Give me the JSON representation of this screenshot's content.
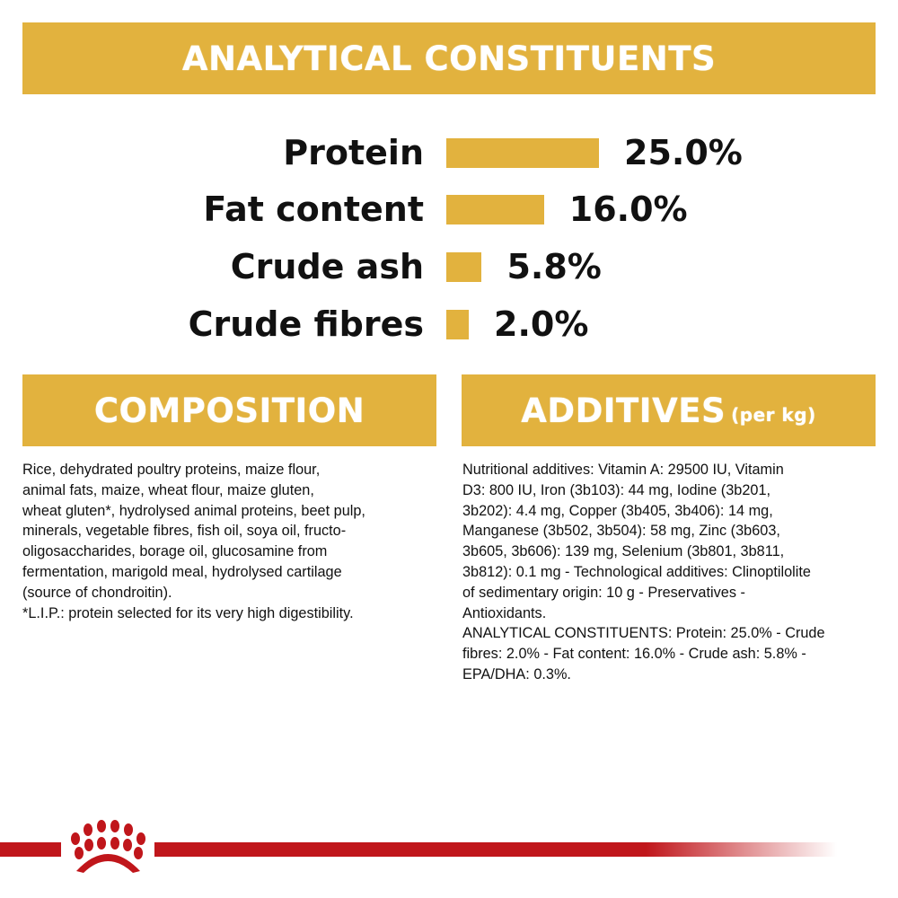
{
  "analytical": {
    "title": "ANALYTICAL CONSTITUENTS",
    "items": [
      {
        "label": "Protein",
        "value": "25.0%",
        "percent": 25.0
      },
      {
        "label": "Fat content",
        "value": "16.0%",
        "percent": 16.0
      },
      {
        "label": "Crude ash",
        "value": "5.8%",
        "percent": 5.8
      },
      {
        "label": "Crude fibres",
        "value": "2.0%",
        "percent": 2.0
      }
    ]
  },
  "composition": {
    "title": "COMPOSITION",
    "text": "Rice, dehydrated poultry proteins, maize flour,\nanimal fats, maize, wheat flour, maize gluten,\nwheat gluten*, hydrolysed animal proteins, beet pulp,\nminerals, vegetable fibres, fish oil, soya oil, fructo-\noligosaccharides, borage oil, glucosamine from\nfermentation, marigold meal, hydrolysed cartilage\n(source of chondroitin).\n*L.I.P.: protein selected for its very high digestibility."
  },
  "additives": {
    "title": "ADDITIVES",
    "subtitle": "(per kg)",
    "text": "Nutritional additives: Vitamin A: 29500 IU, Vitamin\nD3: 800 IU, Iron (3b103): 44 mg, Iodine (3b201,\n3b202): 4.4 mg, Copper (3b405, 3b406): 14 mg,\nManganese (3b502, 3b504): 58 mg, Zinc (3b603,\n3b605, 3b606): 139 mg, Selenium (3b801, 3b811,\n3b812): 0.1 mg - Technological additives: Clinoptilolite\nof sedimentary origin: 10 g - Preservatives -\nAntioxidants.\nANALYTICAL CONSTITUENTS: Protein: 25.0% - Crude\nfibres: 2.0% - Fat content: 16.0% - Crude ash: 5.8% -\nEPA/DHA: 0.3%."
  },
  "colors": {
    "accent": "#e2b23e",
    "brand_red": "#c0161b"
  },
  "logo": {
    "icon": "royal-canin-crown-icon"
  }
}
